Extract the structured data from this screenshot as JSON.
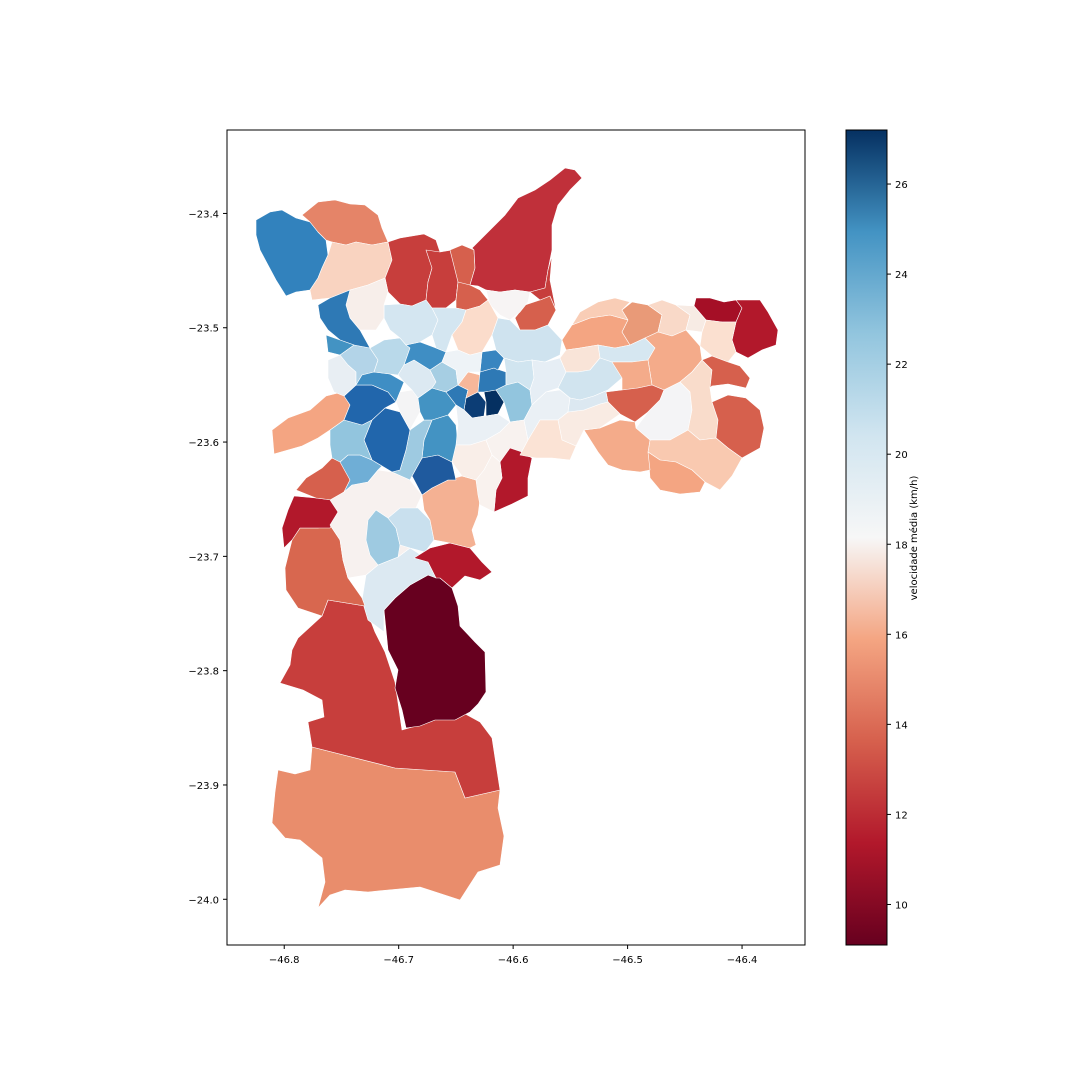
{
  "chart_data": {
    "type": "choropleth",
    "colormap": "RdBu",
    "colorbar": {
      "label": "velocidade média (km/h)",
      "range": [
        9.1,
        27.2
      ],
      "ticks": [
        "10",
        "12",
        "14",
        "16",
        "18",
        "20",
        "22",
        "24",
        "26"
      ],
      "tick_values": [
        10,
        12,
        14,
        16,
        18,
        20,
        22,
        24,
        26
      ]
    },
    "x_ticks": [
      "−46.8",
      "−46.7",
      "−46.6",
      "−46.5",
      "−46.4"
    ],
    "x_tick_values": [
      -46.8,
      -46.7,
      -46.6,
      -46.5,
      -46.4
    ],
    "y_ticks": [
      "−23.4",
      "−23.5",
      "−23.6",
      "−23.7",
      "−23.8",
      "−23.9",
      "−24.0"
    ],
    "y_tick_values": [
      -23.4,
      -23.5,
      -23.6,
      -23.7,
      -23.8,
      -23.9,
      -24.0
    ],
    "xlim": [
      -46.85,
      -46.345
    ],
    "ylim": [
      -24.04,
      -23.327
    ]
  }
}
